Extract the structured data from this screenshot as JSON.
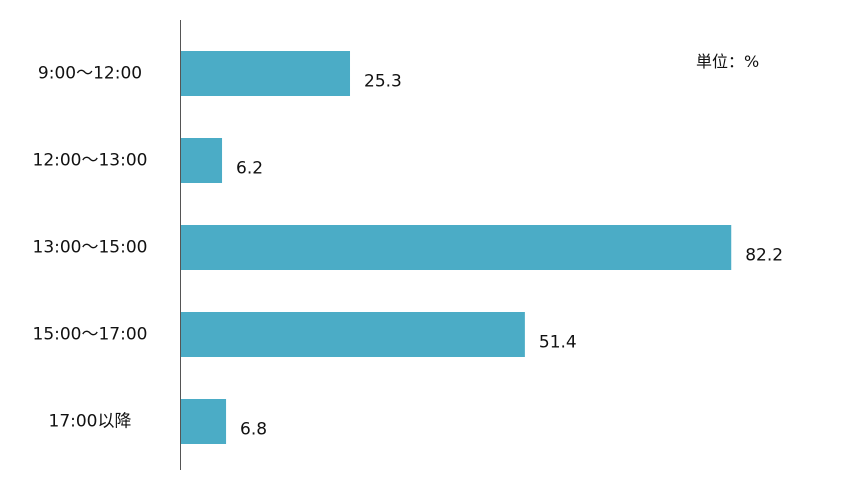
{
  "chart_data": {
    "type": "bar",
    "orientation": "horizontal",
    "unit_label": "単位：%",
    "categories": [
      "9:00～12:00",
      "12:00～13:00",
      "13:00～15:00",
      "15:00～17:00",
      "17:00以降"
    ],
    "values": [
      25.3,
      6.2,
      82.2,
      51.4,
      6.8
    ],
    "value_labels": [
      "25.3",
      "6.2",
      "82.2",
      "51.4",
      "6.8"
    ],
    "xlim": [
      0,
      100
    ],
    "grid": false,
    "bar_color": "#4bacc6",
    "axis_color": "#555555"
  }
}
